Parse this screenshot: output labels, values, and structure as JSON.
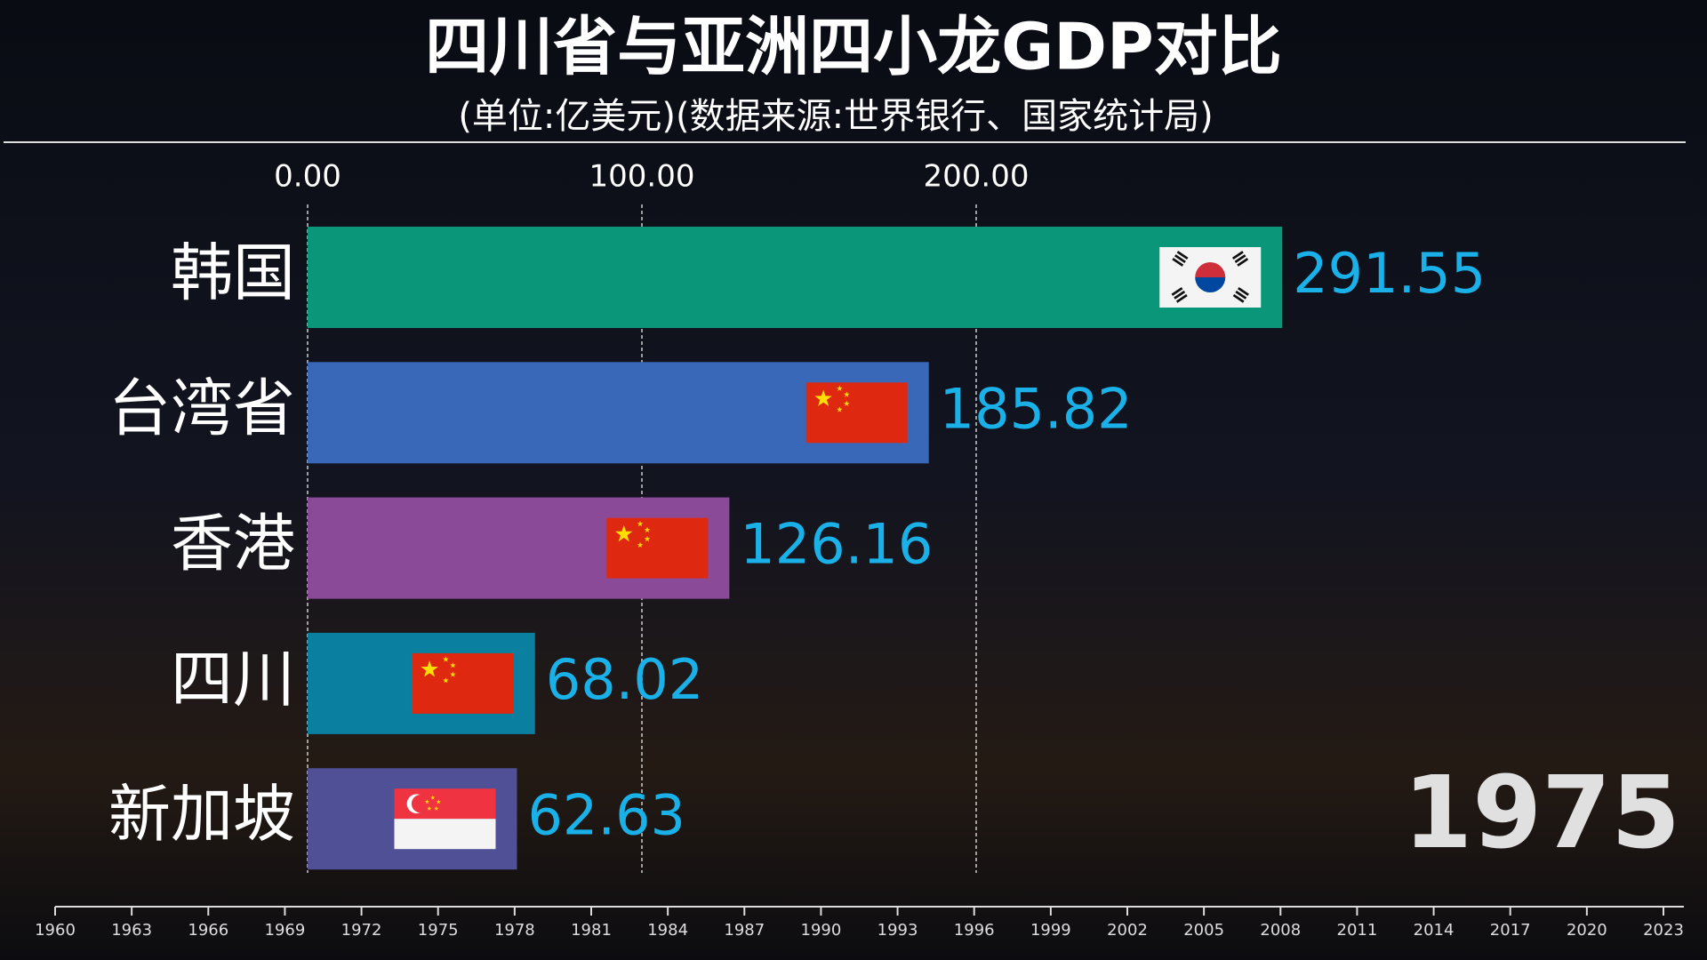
{
  "chart_data": {
    "type": "bar",
    "orientation": "horizontal",
    "title": "四川省与亚洲四小龙GDP对比",
    "subtitle": "(单位:亿美元)(数据来源:世界银行、国家统计局)",
    "categories": [
      "韩国",
      "台湾省",
      "香港",
      "四川",
      "新加坡"
    ],
    "values": [
      291.55,
      185.82,
      126.16,
      68.02,
      62.63
    ],
    "colors": [
      "#0a9678",
      "#3a68b8",
      "#8a4a98",
      "#0a7fa0",
      "#4f5095"
    ],
    "value_label_color": "#1ab0e8",
    "xlim": [
      0,
      400
    ],
    "xticks": [
      {
        "value": 0,
        "label": "0.00"
      },
      {
        "value": 100,
        "label": "100.00"
      },
      {
        "value": 200,
        "label": "200.00"
      }
    ],
    "grid": true,
    "year": 1975,
    "timeline": {
      "xlim": [
        1960,
        2023
      ],
      "xticks": [
        1960,
        1963,
        1966,
        1969,
        1972,
        1975,
        1978,
        1981,
        1984,
        1987,
        1990,
        1993,
        1996,
        1999,
        2002,
        2005,
        2008,
        2011,
        2014,
        2017,
        2020,
        2023
      ]
    }
  }
}
